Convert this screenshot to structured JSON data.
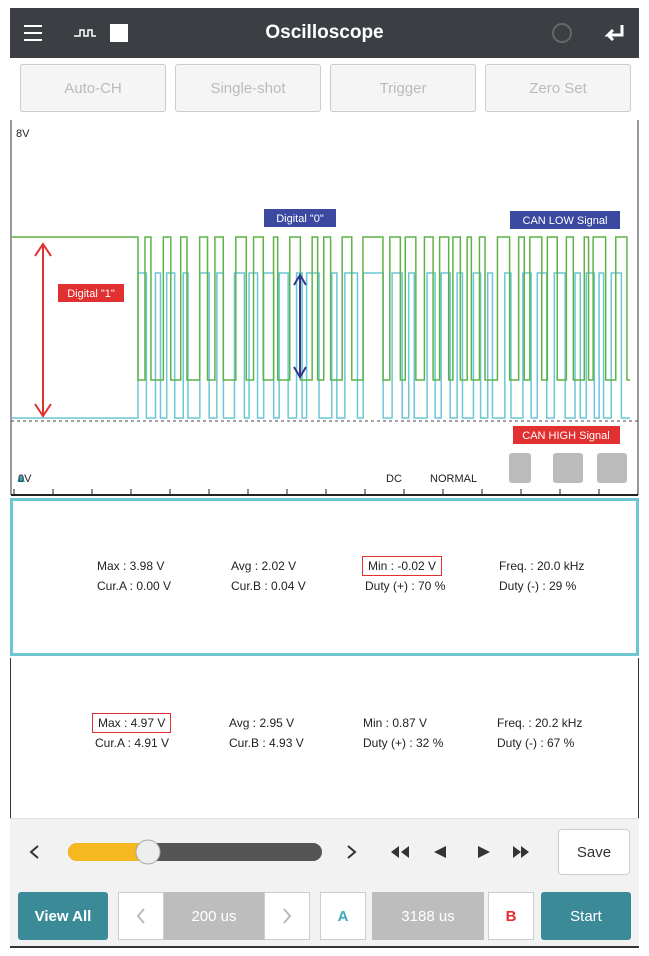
{
  "toolbar": {
    "title": "Oscilloscope"
  },
  "buttons": [
    "Auto-CH",
    "Single-shot",
    "Trigger",
    "Zero Set"
  ],
  "scope": {
    "top_label": "8V",
    "bottom_label": "0V",
    "coupling": "DC",
    "mode": "NORMAL",
    "annotations": {
      "digital_1": "Digital \"1\"",
      "digital_0": "Digital \"0\"",
      "can_low": "CAN LOW Signal",
      "can_high": "CAN HIGH Signal"
    }
  },
  "panels": [
    {
      "rows": [
        [
          "Max : 3.98 V",
          "Avg : 2.02 V",
          "Min : -0.02 V",
          "Freq. : 20.0 kHz"
        ],
        [
          "Cur.A : 0.00 V",
          "Cur.B : 0.04 V",
          "Duty (+) : 70 %",
          "Duty (-) : 29 %"
        ]
      ],
      "highlighted": [
        0,
        2
      ]
    },
    {
      "rows": [
        [
          "Max : 4.97 V",
          "Avg : 2.95 V",
          "Min : 0.87 V",
          "Freq. : 20.2 kHz"
        ],
        [
          "Cur.A : 4.91 V",
          "Cur.B : 4.93 V",
          "Duty (+) : 32 %",
          "Duty (-) : 67 %"
        ]
      ],
      "highlighted": [
        0,
        0
      ]
    }
  ],
  "playback": {
    "save": "Save"
  },
  "footer": {
    "view_all": "View All",
    "time_div": "200 us",
    "cursor_a": "A",
    "delta": "3188 us",
    "cursor_b": "B",
    "start": "Start"
  }
}
